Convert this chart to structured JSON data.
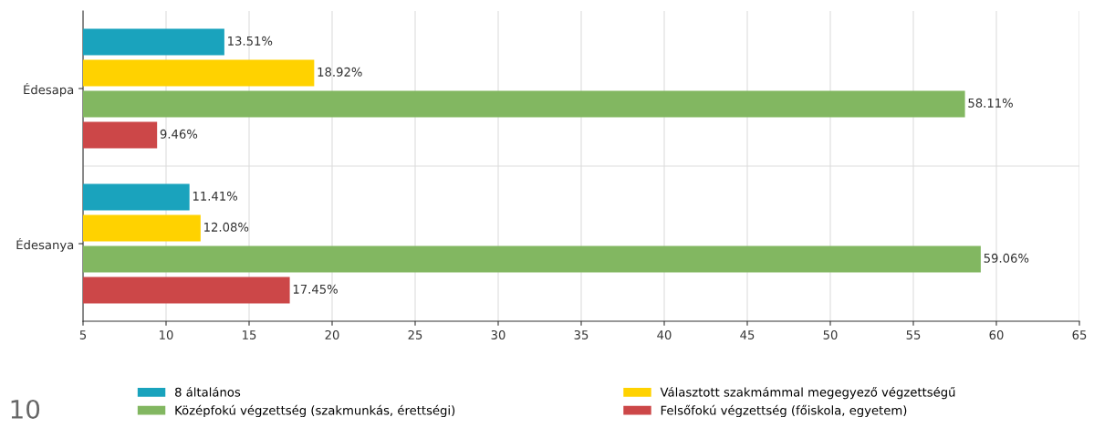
{
  "chart_data": {
    "type": "bar",
    "orientation": "horizontal",
    "categories": [
      "Édesapa",
      "Édesanya"
    ],
    "series": [
      {
        "name": "8 általános",
        "color": "#1aa3bd",
        "values": [
          13.51,
          11.41
        ],
        "value_labels": [
          "13.51%",
          "11.41%"
        ]
      },
      {
        "name": "Választott szakmámmal megegyező végzettségű",
        "color": "#ffd200",
        "values": [
          18.92,
          12.08
        ],
        "value_labels": [
          "18.92%",
          "12.08%"
        ]
      },
      {
        "name": "Középfokú végzettség (szakmunkás, érettségi)",
        "color": "#82b761",
        "values": [
          58.11,
          59.06
        ],
        "value_labels": [
          "58.11%",
          "59.06%"
        ]
      },
      {
        "name": "Felsőfokú végzettség (főiskola, egyetem)",
        "color": "#cc4748",
        "values": [
          9.46,
          17.45
        ],
        "value_labels": [
          "9.46%",
          "17.45%"
        ]
      }
    ],
    "xlim": [
      5,
      65
    ],
    "xticks": [
      5,
      10,
      15,
      20,
      25,
      30,
      35,
      40,
      45,
      50,
      55,
      60,
      65
    ],
    "grid": true,
    "legend": "bottom",
    "annotations": [
      "10"
    ]
  }
}
